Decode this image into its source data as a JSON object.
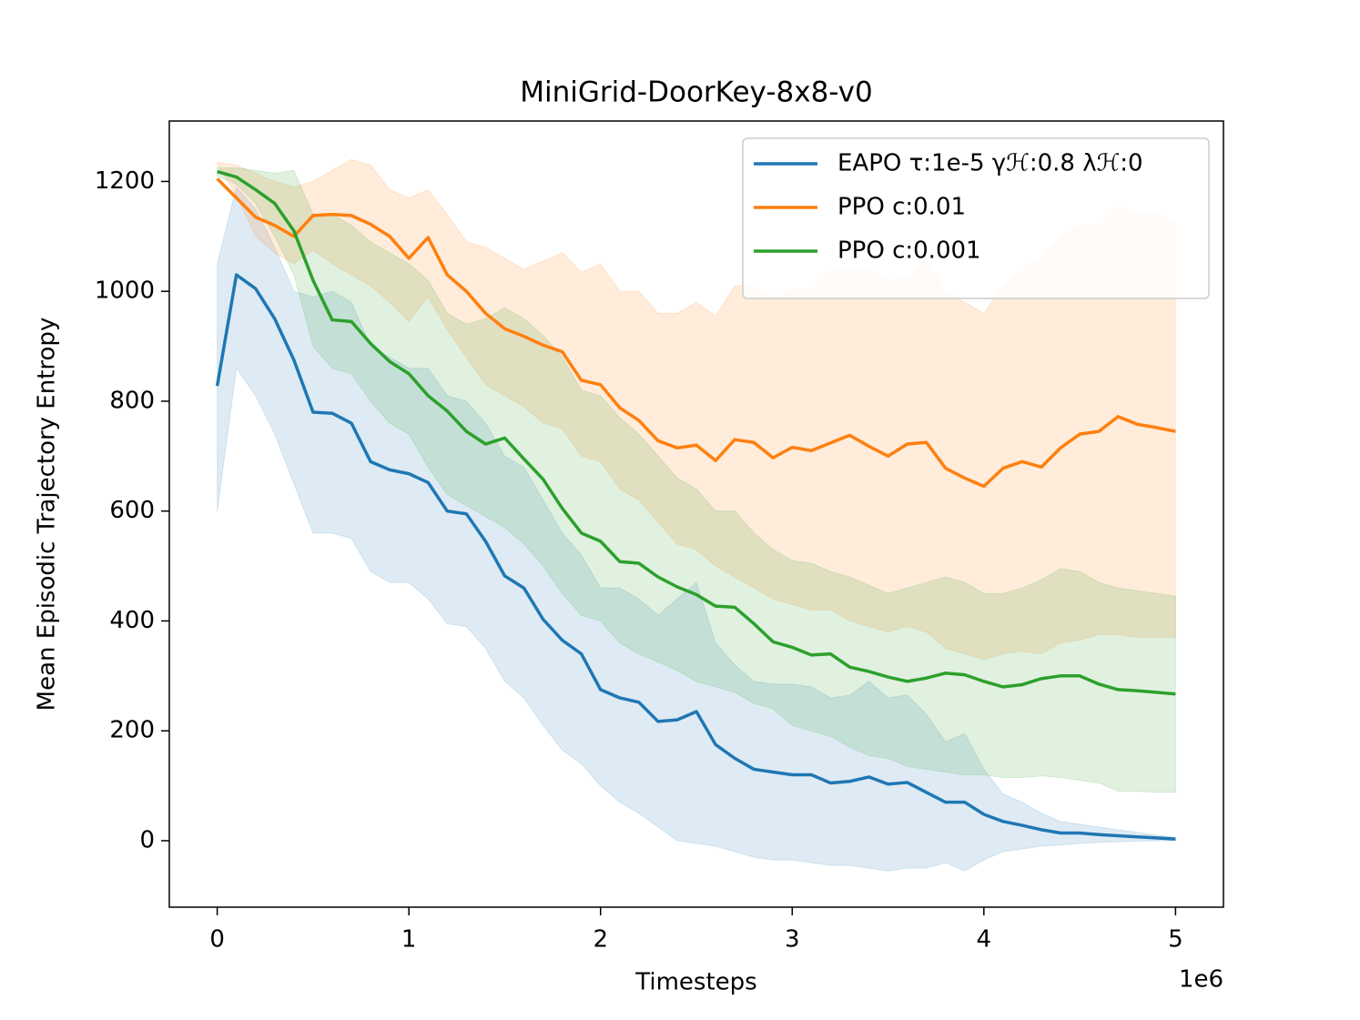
{
  "chart_data": {
    "type": "line",
    "title": "MiniGrid-DoorKey-8x8-v0",
    "x_label": "Timesteps",
    "x_offset_label": "1e6",
    "y_label": "Mean Episodic Trajectory Entropy",
    "x": [
      0,
      0.1,
      0.2,
      0.3,
      0.4,
      0.5,
      0.6,
      0.7,
      0.8,
      0.9,
      1,
      1.1,
      1.2,
      1.3,
      1.4,
      1.5,
      1.6,
      1.7,
      1.8,
      1.9,
      2,
      2.1,
      2.2,
      2.3,
      2.4,
      2.5,
      2.6,
      2.7,
      2.8,
      2.9,
      3,
      3.1,
      3.2,
      3.3,
      3.4,
      3.5,
      3.6,
      3.7,
      3.8,
      3.9,
      4,
      4.1,
      4.2,
      4.3,
      4.4,
      4.5,
      4.6,
      4.7,
      4.8,
      4.9,
      5
    ],
    "xlim": [
      -0.25,
      5.25
    ],
    "xticks": [
      0,
      1,
      2,
      3,
      4,
      5
    ],
    "ylim": [
      -121,
      1310
    ],
    "yticks": [
      0,
      200,
      400,
      600,
      800,
      1000,
      1200
    ],
    "legend": "upper right",
    "series": [
      {
        "name": "EAPO τ:1e-5 γℋ:0.8 λℋ:0",
        "color": "#1f77b4",
        "values": [
          828,
          1030,
          1005,
          950,
          875,
          780,
          778,
          760,
          690,
          675,
          668,
          652,
          600,
          595,
          545,
          482,
          460,
          403,
          365,
          340,
          275,
          260,
          252,
          217,
          220,
          235,
          175,
          150,
          130,
          125,
          120,
          120,
          105,
          108,
          116,
          103,
          106,
          88,
          70,
          70,
          48,
          35,
          28,
          20,
          14,
          14,
          11,
          9,
          7,
          5,
          3
        ],
        "upper": [
          1050,
          1190,
          1150,
          1080,
          1000,
          990,
          1000,
          980,
          900,
          880,
          860,
          860,
          810,
          800,
          760,
          700,
          680,
          620,
          560,
          520,
          460,
          460,
          440,
          410,
          440,
          470,
          360,
          320,
          290,
          285,
          285,
          280,
          260,
          265,
          290,
          260,
          265,
          230,
          180,
          195,
          130,
          85,
          70,
          50,
          35,
          30,
          25,
          20,
          15,
          10,
          6
        ],
        "lower": [
          600,
          860,
          810,
          740,
          650,
          560,
          560,
          550,
          490,
          470,
          470,
          440,
          395,
          390,
          350,
          290,
          260,
          210,
          165,
          140,
          100,
          70,
          50,
          25,
          0,
          -5,
          -10,
          -20,
          -30,
          -35,
          -35,
          -40,
          -45,
          -45,
          -50,
          -55,
          -50,
          -50,
          -40,
          -55,
          -35,
          -20,
          -15,
          -10,
          -8,
          -5,
          -3,
          -2,
          -1,
          0,
          0
        ]
      },
      {
        "name": "PPO c:0.01",
        "color": "#ff7f0e",
        "values": [
          1205,
          1170,
          1135,
          1120,
          1100,
          1138,
          1140,
          1138,
          1122,
          1100,
          1060,
          1098,
          1030,
          1000,
          960,
          932,
          918,
          902,
          890,
          838,
          830,
          788,
          765,
          728,
          715,
          720,
          692,
          730,
          725,
          697,
          716,
          710,
          724,
          738,
          718,
          700,
          722,
          725,
          678,
          660,
          645,
          678,
          690,
          680,
          715,
          740,
          745,
          772,
          758,
          752,
          745
        ],
        "upper": [
          1235,
          1230,
          1215,
          1200,
          1190,
          1200,
          1220,
          1240,
          1230,
          1185,
          1170,
          1185,
          1140,
          1090,
          1080,
          1060,
          1040,
          1055,
          1070,
          1035,
          1050,
          1000,
          1000,
          960,
          960,
          980,
          955,
          1010,
          1010,
          985,
          1005,
          1005,
          1040,
          1040,
          1040,
          1020,
          1025,
          1060,
          1000,
          980,
          960,
          1010,
          1040,
          1060,
          1100,
          1120,
          1120,
          1155,
          1140,
          1140,
          1125
        ],
        "lower": [
          1230,
          1175,
          1100,
          1070,
          1050,
          1075,
          1050,
          1030,
          1010,
          980,
          945,
          990,
          930,
          880,
          830,
          810,
          790,
          760,
          750,
          700,
          690,
          640,
          620,
          580,
          540,
          530,
          500,
          480,
          460,
          440,
          430,
          420,
          420,
          400,
          390,
          380,
          390,
          380,
          350,
          340,
          330,
          340,
          345,
          340,
          360,
          365,
          375,
          375,
          370,
          370,
          370
        ]
      },
      {
        "name": "PPO c:0.001",
        "color": "#2ca02c",
        "values": [
          1218,
          1208,
          1185,
          1160,
          1110,
          1020,
          948,
          945,
          905,
          872,
          850,
          810,
          782,
          745,
          722,
          733,
          695,
          658,
          605,
          560,
          545,
          508,
          505,
          480,
          462,
          448,
          427,
          425,
          395,
          362,
          352,
          338,
          340,
          316,
          308,
          298,
          290,
          296,
          305,
          302,
          290,
          280,
          284,
          295,
          300,
          300,
          285,
          275,
          273,
          270,
          267
        ],
        "upper": [
          1225,
          1225,
          1220,
          1215,
          1220,
          1140,
          1140,
          1120,
          1090,
          1070,
          1050,
          1020,
          960,
          940,
          950,
          970,
          950,
          920,
          880,
          820,
          810,
          770,
          740,
          700,
          660,
          640,
          600,
          600,
          560,
          530,
          510,
          505,
          490,
          480,
          465,
          450,
          460,
          470,
          480,
          470,
          450,
          450,
          460,
          475,
          495,
          490,
          470,
          460,
          455,
          450,
          445
        ],
        "lower": [
          1210,
          1195,
          1160,
          1100,
          1030,
          900,
          860,
          850,
          800,
          760,
          740,
          680,
          630,
          610,
          590,
          570,
          540,
          500,
          450,
          410,
          400,
          360,
          340,
          325,
          310,
          290,
          280,
          270,
          250,
          240,
          210,
          200,
          190,
          170,
          155,
          150,
          135,
          130,
          125,
          120,
          120,
          115,
          115,
          118,
          115,
          110,
          105,
          90,
          90,
          88,
          88
        ]
      }
    ]
  }
}
